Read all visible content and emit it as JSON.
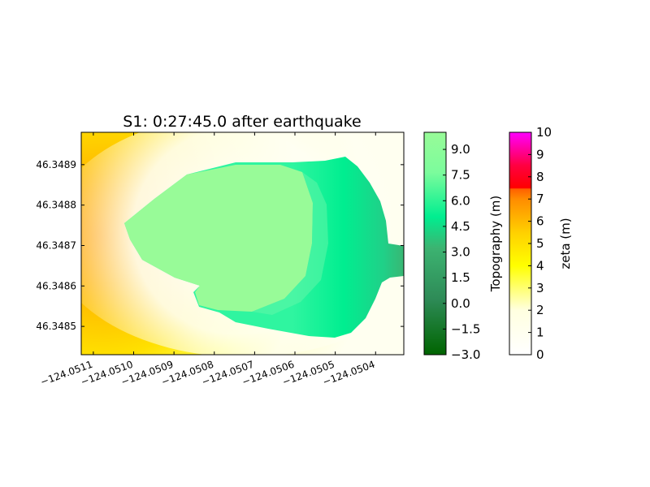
{
  "chart_data": {
    "type": "heatmap",
    "title": "S1: 0:27:45.0 after earthquake",
    "xlabel": "",
    "ylabel": "",
    "xlim": [
      -124.05113,
      -124.05033
    ],
    "ylim": [
      46.34843,
      46.34898
    ],
    "x_ticks": [
      "−124.0511",
      "−124.0510",
      "−124.0509",
      "−124.0508",
      "−124.0507",
      "−124.0506",
      "−124.0505",
      "−124.0504"
    ],
    "x_tick_values": [
      -124.0511,
      -124.051,
      -124.0509,
      -124.0508,
      -124.0507,
      -124.0506,
      -124.0505,
      -124.0504
    ],
    "y_ticks": [
      "46.3489",
      "46.3488",
      "46.3487",
      "46.3486",
      "46.3485"
    ],
    "y_tick_values": [
      46.3489,
      46.3488,
      46.3487,
      46.3486,
      46.3485
    ],
    "grid": false,
    "colorbars": [
      {
        "label": "Topography (m)",
        "range": [
          -3.0,
          10.0
        ],
        "ticks": [
          "−3.0",
          "−1.5",
          "0.0",
          "1.5",
          "3.0",
          "4.5",
          "6.0",
          "7.5",
          "9.0"
        ],
        "tick_values": [
          -3.0,
          -1.5,
          0.0,
          1.5,
          3.0,
          4.5,
          6.0,
          7.5,
          9.0
        ],
        "colors": [
          "#006400",
          "#3cb371",
          "#00ee90",
          "#98fb98"
        ]
      },
      {
        "label": "zeta (m)",
        "range": [
          0,
          10
        ],
        "ticks": [
          "0",
          "1",
          "2",
          "3",
          "4",
          "5",
          "6",
          "7",
          "8",
          "9",
          "10"
        ],
        "tick_values": [
          0,
          1,
          2,
          3,
          4,
          5,
          6,
          7,
          8,
          9,
          10
        ],
        "colors": [
          "#ffffff",
          "#ffff00",
          "#ff8c00",
          "#ff0000",
          "#ff00ff"
        ]
      }
    ],
    "colors": {
      "land_top": "#98fb98",
      "land_mid": "#00ee90",
      "land_low": "#3cb371",
      "water_high": "#ff9a00",
      "water_mid": "#ffd700",
      "water_low": "#ffff00",
      "water_calm": "#fffff0"
    }
  }
}
